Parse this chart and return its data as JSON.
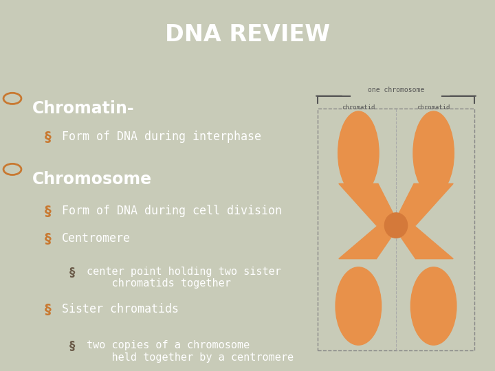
{
  "title": "DNA REVIEW",
  "title_bg": "#5a5050",
  "title_color": "#ffffff",
  "body_bg": "#b8bda8",
  "slide_bg": "#c8cbb8",
  "bullet_color": "#c87830",
  "sub_bullet_color": "#c87830",
  "sub2_bullet_color": "#6a5a48",
  "text_color": "#ffffff",
  "items": [
    {
      "level": 0,
      "text": "Chromatin-",
      "bullet": "O"
    },
    {
      "level": 1,
      "text": "Form of DNA during interphase",
      "bullet": "§"
    },
    {
      "level": 0,
      "text": "Chromosome",
      "bullet": "O"
    },
    {
      "level": 1,
      "text": "Form of DNA during cell division",
      "bullet": "§"
    },
    {
      "level": 1,
      "text": "Centromere",
      "bullet": "§"
    },
    {
      "level": 2,
      "text": "center point holding two sister\n    chromatids together",
      "bullet": "§"
    },
    {
      "level": 1,
      "text": "Sister chromatids",
      "bullet": "§"
    },
    {
      "level": 2,
      "text": "two copies of a chromosome\n    held together by a centromere",
      "bullet": "§"
    }
  ]
}
